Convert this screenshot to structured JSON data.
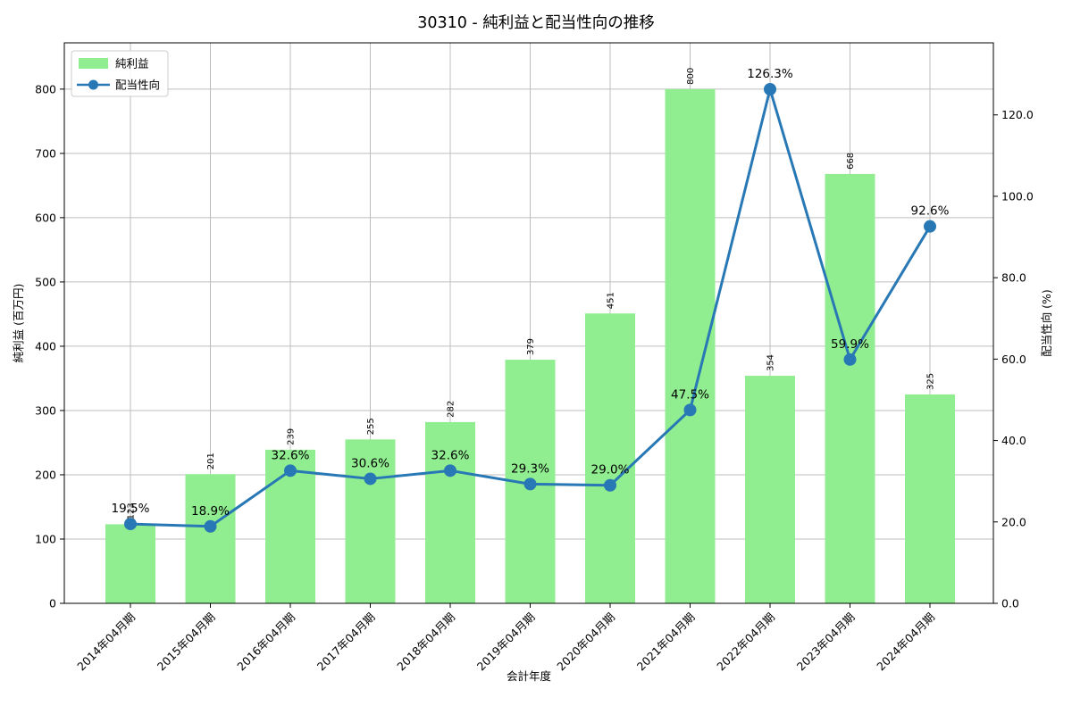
{
  "chart_data": {
    "type": "combo-bar-line",
    "title": "30310 - 純利益と配当性向の推移",
    "xlabel": "会計年度",
    "ylabel_left": "純利益 (百万円)",
    "ylabel_right": "配当性向 (%)",
    "categories": [
      "2014年04月期",
      "2015年04月期",
      "2016年04月期",
      "2017年04月期",
      "2018年04月期",
      "2019年04月期",
      "2020年04月期",
      "2021年04月期",
      "2022年04月期",
      "2023年04月期",
      "2024年04月期"
    ],
    "series": [
      {
        "name": "純利益",
        "type": "bar",
        "axis": "left",
        "color": "#90ee90",
        "values": [
          123,
          201,
          239,
          255,
          282,
          379,
          451,
          800,
          354,
          668,
          325
        ],
        "labels": [
          "123",
          "201",
          "239",
          "255",
          "282",
          "379",
          "451",
          "800",
          "354",
          "668",
          "325"
        ]
      },
      {
        "name": "配当性向",
        "type": "line",
        "axis": "right",
        "color": "#2878b5",
        "values": [
          19.5,
          18.9,
          32.6,
          30.6,
          32.6,
          29.3,
          29.0,
          47.5,
          126.3,
          59.9,
          92.6
        ],
        "labels": [
          "19.5%",
          "18.9%",
          "32.6%",
          "30.6%",
          "32.6%",
          "29.3%",
          "29.0%",
          "47.5%",
          "126.3%",
          "59.9%",
          "92.6%"
        ]
      }
    ],
    "yticks_left": {
      "values": [
        0,
        100,
        200,
        300,
        400,
        500,
        600,
        700,
        800
      ],
      "labels": [
        "0",
        "100",
        "200",
        "300",
        "400",
        "500",
        "600",
        "700",
        "800"
      ]
    },
    "yticks_right": {
      "values": [
        0,
        20,
        40,
        60,
        80,
        100,
        120
      ],
      "labels": [
        "0.0",
        "20.0",
        "40.0",
        "60.0",
        "80.0",
        "100.0",
        "120.0"
      ]
    },
    "ylim_left": [
      0,
      872
    ],
    "ylim_right": [
      0,
      137.7
    ],
    "grid": true,
    "grid_color": "#bdbdbd",
    "legend_position": "upper-left",
    "legend": {
      "items": [
        "純利益",
        "配当性向"
      ]
    }
  }
}
